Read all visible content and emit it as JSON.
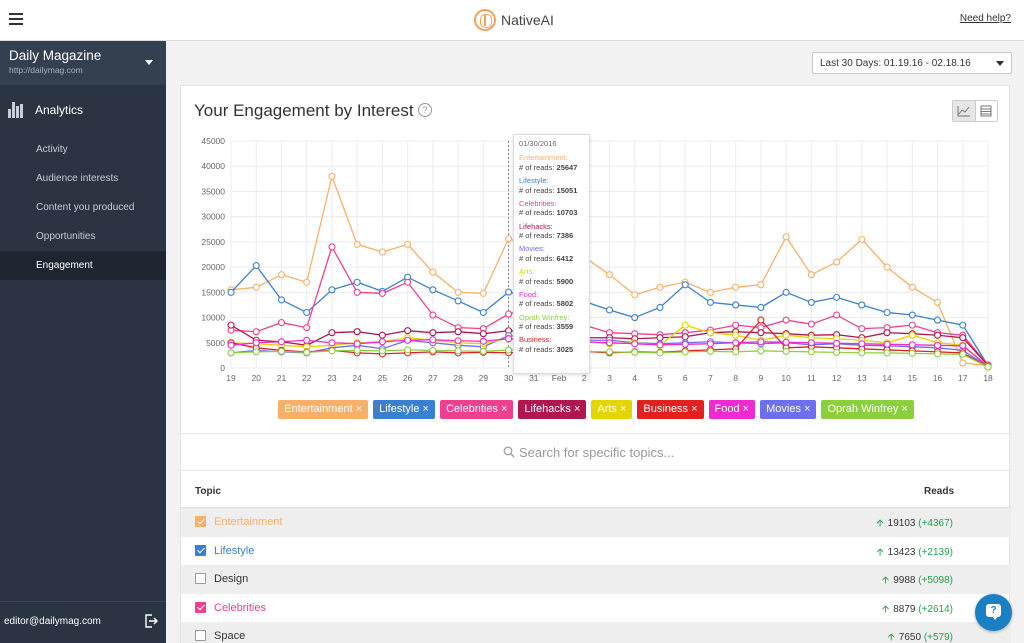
{
  "app": {
    "brand": "NativeAI",
    "help_link": "Need help?"
  },
  "sidebar": {
    "site_name": "Daily Magazine",
    "site_url": "http://dailymag.com",
    "section": "Analytics",
    "items": [
      {
        "label": "Activity",
        "active": false
      },
      {
        "label": "Audience interests",
        "active": false
      },
      {
        "label": "Content you produced",
        "active": false
      },
      {
        "label": "Opportunities",
        "active": false
      },
      {
        "label": "Engagement",
        "active": true
      }
    ],
    "user_email": "editor@dailymag.com"
  },
  "date_range": {
    "value": "Last 30 Days: 01.19.16 - 02.18.16"
  },
  "card": {
    "title": "Your Engagement by Interest",
    "help": "?"
  },
  "tooltip": {
    "date": "01/30/2016",
    "reads_label": "# of reads:",
    "entries": [
      {
        "name": "Entertainment:",
        "value": "25647",
        "color": "#f7b06a"
      },
      {
        "name": "Lifestyle:",
        "value": "15051",
        "color": "#3a7fd0"
      },
      {
        "name": "Celebrities:",
        "value": "10703",
        "color": "#ef3f8f"
      },
      {
        "name": "Lifehacks:",
        "value": "7386",
        "color": "#b0164f"
      },
      {
        "name": "Movies:",
        "value": "6412",
        "color": "#6c6ff0"
      },
      {
        "name": "Arts:",
        "value": "5900",
        "color": "#e4d400"
      },
      {
        "name": "Food:",
        "value": "5802",
        "color": "#ee2ad0"
      },
      {
        "name": "Oprah Winfrey:",
        "value": "3559",
        "color": "#8ccf3c"
      },
      {
        "name": "Business:",
        "value": "3025",
        "color": "#e32020"
      }
    ]
  },
  "chart_data": {
    "type": "line",
    "x": [
      "19",
      "20",
      "21",
      "22",
      "23",
      "24",
      "25",
      "26",
      "27",
      "28",
      "29",
      "30",
      "31",
      "Feb",
      "2",
      "3",
      "4",
      "5",
      "6",
      "7",
      "8",
      "9",
      "10",
      "11",
      "12",
      "13",
      "14",
      "15",
      "16",
      "17",
      "18"
    ],
    "ylim": [
      0,
      45000
    ],
    "yticks": [
      0,
      5000,
      10000,
      15000,
      20000,
      25000,
      30000,
      35000,
      40000,
      45000
    ],
    "grid": true,
    "series": [
      {
        "name": "Entertainment",
        "color": "#f7b06a",
        "values": [
          15500,
          16000,
          18500,
          17000,
          38000,
          24500,
          23000,
          24500,
          19000,
          15000,
          14800,
          25647,
          24000,
          23500,
          22000,
          18500,
          14500,
          16000,
          17000,
          15000,
          16000,
          16500,
          26000,
          18500,
          21000,
          25500,
          20000,
          16000,
          13000,
          1000,
          500
        ]
      },
      {
        "name": "Lifestyle",
        "color": "#3a7fd0",
        "values": [
          15000,
          20300,
          13500,
          11000,
          15500,
          17000,
          15200,
          18000,
          15500,
          13300,
          11000,
          15051,
          14000,
          13800,
          13200,
          11500,
          10000,
          12000,
          16500,
          13000,
          12500,
          12000,
          15000,
          13000,
          14000,
          12500,
          11000,
          10500,
          9500,
          8500,
          500
        ]
      },
      {
        "name": "Celebrities",
        "color": "#ef3f8f",
        "values": [
          7500,
          7200,
          9000,
          8000,
          24000,
          15000,
          14800,
          17000,
          10500,
          8000,
          7800,
          10703,
          12000,
          9500,
          8500,
          7000,
          6800,
          6600,
          7000,
          7500,
          8500,
          8000,
          9500,
          8700,
          10500,
          7800,
          8000,
          8500,
          7000,
          6500,
          600
        ]
      },
      {
        "name": "Lifehacks",
        "color": "#b0164f",
        "values": [
          8500,
          5500,
          5200,
          4500,
          7000,
          7200,
          6500,
          7400,
          7000,
          7200,
          6800,
          7386,
          7000,
          6500,
          6000,
          6000,
          5800,
          6000,
          6200,
          7000,
          7200,
          7000,
          6800,
          6500,
          6600,
          6000,
          7000,
          6800,
          6500,
          6000,
          500
        ]
      },
      {
        "name": "Movies",
        "color": "#6c6ff0",
        "values": [
          3000,
          3500,
          3200,
          3000,
          4000,
          4500,
          3800,
          5500,
          5000,
          4500,
          4200,
          6412,
          6000,
          5800,
          5500,
          5500,
          5000,
          4800,
          5000,
          5200,
          5000,
          4800,
          5000,
          4600,
          4800,
          4500,
          4400,
          4200,
          4000,
          3500,
          300
        ]
      },
      {
        "name": "Arts",
        "color": "#e4d400",
        "values": [
          5000,
          4800,
          4500,
          4200,
          4500,
          5000,
          5200,
          6000,
          5500,
          5000,
          4800,
          5900,
          5500,
          5000,
          5200,
          4800,
          5000,
          4500,
          8500,
          7000,
          6500,
          5500,
          6500,
          6000,
          5800,
          5500,
          5000,
          6500,
          5000,
          4500,
          400
        ]
      },
      {
        "name": "Business",
        "color": "#e32020",
        "values": [
          5000,
          4000,
          3500,
          3200,
          3500,
          3000,
          2800,
          3000,
          3200,
          3000,
          3100,
          3025,
          3200,
          3500,
          3300,
          3000,
          3200,
          3100,
          3400,
          3600,
          3800,
          9500,
          4000,
          4200,
          4000,
          3800,
          3600,
          3400,
          3200,
          3000,
          200
        ]
      },
      {
        "name": "Food",
        "color": "#ee2ad0",
        "values": [
          4500,
          5000,
          5200,
          5500,
          5000,
          4800,
          5200,
          5500,
          5600,
          5400,
          5300,
          5802,
          5600,
          5400,
          5200,
          5000,
          4800,
          4600,
          4700,
          4800,
          5000,
          5200,
          5100,
          5000,
          4900,
          4800,
          4700,
          4600,
          4500,
          4400,
          300
        ]
      },
      {
        "name": "Oprah Winfrey",
        "color": "#8ccf3c",
        "values": [
          3000,
          3200,
          3300,
          3100,
          3400,
          3500,
          3400,
          3600,
          3500,
          3400,
          3300,
          3559,
          3500,
          3400,
          3300,
          3200,
          3100,
          3000,
          3200,
          3300,
          3200,
          3400,
          3300,
          3200,
          3100,
          3000,
          3000,
          2900,
          2800,
          2700,
          200
        ]
      }
    ]
  },
  "chips": [
    {
      "label": "Entertainment ×",
      "color": "#f7b06a"
    },
    {
      "label": "Lifestyle ×",
      "color": "#3a7fd0"
    },
    {
      "label": "Celebrities ×",
      "color": "#ef3f8f"
    },
    {
      "label": "Lifehacks ×",
      "color": "#b0164f"
    },
    {
      "label": "Arts ×",
      "color": "#e4d400"
    },
    {
      "label": "Business ×",
      "color": "#e32020"
    },
    {
      "label": "Food ×",
      "color": "#ee2ad0"
    },
    {
      "label": "Movies ×",
      "color": "#6c6ff0"
    },
    {
      "label": "Oprah Winfrey ×",
      "color": "#8ccf3c"
    }
  ],
  "search": {
    "placeholder": "Search for specific topics..."
  },
  "table": {
    "headers": {
      "topic": "Topic",
      "reads": "Reads"
    },
    "rows": [
      {
        "topic": "Entertainment",
        "checked": true,
        "color": "#f7b06a",
        "reads": "19103",
        "delta": "(+4367)"
      },
      {
        "topic": "Lifestyle",
        "checked": true,
        "color": "#3a7fd0",
        "reads": "13423",
        "delta": "(+2139)"
      },
      {
        "topic": "Design",
        "checked": false,
        "color": "#333333",
        "reads": "9988",
        "delta": "(+5098)"
      },
      {
        "topic": "Celebrities",
        "checked": true,
        "color": "#ef3f8f",
        "reads": "8879",
        "delta": "(+2614)"
      },
      {
        "topic": "Space",
        "checked": false,
        "color": "#333333",
        "reads": "7650",
        "delta": "(+579)"
      }
    ]
  }
}
